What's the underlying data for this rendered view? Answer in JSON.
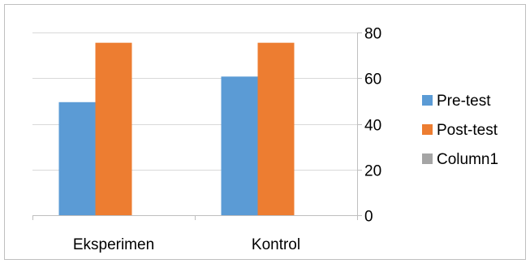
{
  "chart_data": {
    "type": "bar",
    "categories": [
      "Eksperimen",
      "Kontrol"
    ],
    "series": [
      {
        "name": "Pre-test",
        "values": [
          49.5,
          60.7
        ],
        "color": "#5b9bd5"
      },
      {
        "name": "Post-test",
        "values": [
          75.5,
          75.5
        ],
        "color": "#ed7d31"
      },
      {
        "name": "Column1",
        "values": [
          null,
          null
        ],
        "color": "#a5a5a5"
      }
    ],
    "yticks": [
      0,
      20,
      40,
      60,
      80
    ],
    "ylim": [
      0,
      80
    ],
    "y_axis_side": "right",
    "grid": true,
    "legend_position": "right"
  }
}
